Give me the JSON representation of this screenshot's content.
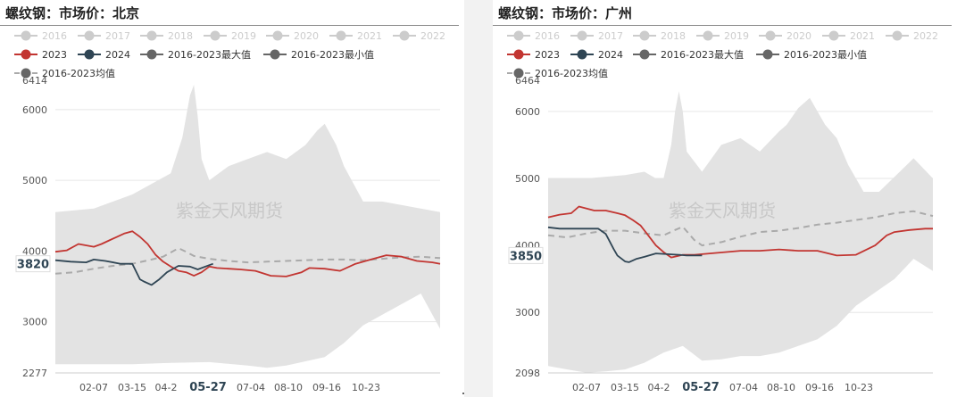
{
  "legend_row1": [
    "2016",
    "2017",
    "2018",
    "2019",
    "2020",
    "2021",
    "2022"
  ],
  "legend_row2": [
    {
      "name": "2023",
      "color": "#c23531"
    },
    {
      "name": "2024",
      "color": "#2f4554"
    },
    {
      "name": "2016-2023最大值",
      "color": "#666666"
    },
    {
      "name": "2016-2023最小值",
      "color": "#666666"
    }
  ],
  "legend_row3": [
    {
      "name": "2016-2023均值",
      "color": "#666666"
    }
  ],
  "colors": {
    "y2023": "#c23531",
    "y2024": "#2f4554",
    "avg": "#aaaaaa",
    "band": "#e3e3e3",
    "legend_off": "#cccccc"
  },
  "charts": [
    {
      "title": "螺纹钢：市场价：北京",
      "watermark": "紫金天风期货",
      "current_value_label": "3820",
      "chart_data": {
        "type": "line",
        "x_ticks": [
          "02-07",
          "03-15",
          "04-2",
          "05-27",
          "07-04",
          "08-10",
          "09-16",
          "10-23"
        ],
        "highlighted_tick": "05-27",
        "ylim": [
          2277,
          6414
        ],
        "y_ticks": [
          2277,
          3000,
          4000,
          5000,
          6000,
          6414
        ],
        "series": [
          {
            "name": "2023",
            "x": [
              0,
              3,
              6,
              10,
              12,
              14,
              18,
              20,
              22,
              24,
              26,
              28,
              30,
              32,
              34,
              36,
              38,
              40,
              42,
              45,
              48,
              52,
              56,
              60,
              64,
              66,
              70,
              74,
              78,
              82,
              86,
              90,
              94,
              98,
              100
            ],
            "y": [
              3990,
              4010,
              4100,
              4060,
              4100,
              4150,
              4250,
              4280,
              4200,
              4100,
              3950,
              3850,
              3780,
              3720,
              3700,
              3650,
              3700,
              3780,
              3760,
              3750,
              3740,
              3720,
              3650,
              3640,
              3700,
              3760,
              3750,
              3720,
              3820,
              3880,
              3940,
              3920,
              3860,
              3840,
              3820
            ]
          },
          {
            "name": "2024",
            "x": [
              0,
              4,
              8,
              10,
              13,
              17,
              20,
              22,
              23,
              25,
              27,
              29,
              31,
              32,
              35,
              37,
              40,
              41
            ],
            "y": [
              3870,
              3850,
              3840,
              3880,
              3860,
              3820,
              3820,
              3600,
              3570,
              3520,
              3600,
              3700,
              3760,
              3790,
              3780,
              3740,
              3800,
              3820
            ]
          },
          {
            "name": "2016-2023均值",
            "x": [
              0,
              5,
              10,
              15,
              20,
              25,
              28,
              30,
              32,
              34,
              36,
              40,
              45,
              50,
              55,
              60,
              65,
              70,
              75,
              80,
              85,
              90,
              95,
              100
            ],
            "y": [
              3680,
              3700,
              3750,
              3790,
              3820,
              3880,
              3920,
              3980,
              4040,
              3990,
              3930,
              3890,
              3860,
              3840,
              3850,
              3860,
              3870,
              3880,
              3880,
              3870,
              3890,
              3910,
              3920,
              3900
            ]
          },
          {
            "name": "2016-2023最大值",
            "x": [
              0,
              10,
              20,
              30,
              33,
              35,
              36,
              37,
              38,
              40,
              45,
              50,
              55,
              60,
              65,
              68,
              70,
              73,
              75,
              80,
              85,
              100
            ],
            "y": [
              4550,
              4600,
              4800,
              5100,
              5600,
              6200,
              6350,
              5900,
              5300,
              5000,
              5200,
              5300,
              5400,
              5300,
              5500,
              5700,
              5800,
              5500,
              5200,
              4700,
              4700,
              4550
            ]
          },
          {
            "name": "2016-2023最小值",
            "x": [
              0,
              10,
              20,
              30,
              40,
              50,
              55,
              60,
              70,
              75,
              80,
              85,
              90,
              95,
              100
            ],
            "y": [
              2400,
              2400,
              2400,
              2420,
              2430,
              2380,
              2350,
              2380,
              2500,
              2700,
              2950,
              3100,
              3250,
              3400,
              2900
            ]
          }
        ]
      }
    },
    {
      "title": "螺纹钢：市场价：广州",
      "watermark": "紫金天风期货",
      "current_value_label": "3850",
      "chart_data": {
        "type": "line",
        "x_ticks": [
          "02-07",
          "03-15",
          "04-2",
          "05-27",
          "07-04",
          "08-10",
          "09-16",
          "10-23"
        ],
        "highlighted_tick": "05-27",
        "ylim": [
          2098,
          6464
        ],
        "y_ticks": [
          2098,
          3000,
          4000,
          5000,
          6000,
          6464
        ],
        "series": [
          {
            "name": "2023",
            "x": [
              0,
              3,
              6,
              8,
              10,
              12,
              15,
              18,
              20,
              22,
              24,
              26,
              28,
              30,
              32,
              35,
              38,
              42,
              46,
              50,
              55,
              60,
              65,
              70,
              75,
              80,
              85,
              88,
              90,
              94,
              98,
              100
            ],
            "y": [
              4420,
              4460,
              4480,
              4580,
              4550,
              4520,
              4520,
              4480,
              4450,
              4380,
              4300,
              4150,
              4000,
              3900,
              3820,
              3860,
              3860,
              3880,
              3900,
              3920,
              3920,
              3940,
              3920,
              3920,
              3850,
              3860,
              4000,
              4150,
              4200,
              4230,
              4250,
              4250
            ]
          },
          {
            "name": "2024",
            "x": [
              0,
              3,
              6,
              10,
              13,
              15,
              17,
              18,
              20,
              21,
              23,
              25,
              28,
              31,
              34,
              36,
              40
            ],
            "y": [
              4270,
              4250,
              4250,
              4250,
              4250,
              4170,
              3950,
              3850,
              3760,
              3750,
              3800,
              3830,
              3880,
              3870,
              3860,
              3850,
              3850
            ]
          },
          {
            "name": "2016-2023均值",
            "x": [
              0,
              5,
              10,
              15,
              20,
              25,
              30,
              33,
              35,
              38,
              40,
              45,
              50,
              55,
              60,
              65,
              70,
              75,
              80,
              85,
              90,
              95,
              100
            ],
            "y": [
              4150,
              4120,
              4180,
              4220,
              4220,
              4180,
              4150,
              4230,
              4280,
              4080,
              4000,
              4050,
              4130,
              4200,
              4220,
              4260,
              4310,
              4340,
              4380,
              4420,
              4480,
              4510,
              4440
            ]
          },
          {
            "name": "2016-2023最大值",
            "x": [
              0,
              10,
              20,
              25,
              28,
              30,
              32,
              33,
              34,
              35,
              36,
              40,
              45,
              50,
              55,
              60,
              62,
              65,
              68,
              70,
              72,
              75,
              78,
              82,
              86,
              95,
              100
            ],
            "y": [
              5000,
              5000,
              5050,
              5100,
              5000,
              5000,
              5500,
              6000,
              6300,
              6000,
              5400,
              5100,
              5500,
              5600,
              5400,
              5700,
              5800,
              6050,
              6200,
              6000,
              5800,
              5600,
              5200,
              4800,
              4800,
              5300,
              5000
            ]
          },
          {
            "name": "2016-2023最小值",
            "x": [
              0,
              5,
              10,
              15,
              20,
              25,
              30,
              35,
              40,
              45,
              50,
              55,
              60,
              65,
              70,
              75,
              80,
              85,
              90,
              95,
              100
            ],
            "y": [
              2200,
              2150,
              2100,
              2120,
              2150,
              2250,
              2400,
              2500,
              2280,
              2300,
              2350,
              2350,
              2400,
              2500,
              2600,
              2800,
              3100,
              3300,
              3500,
              3800,
              3620
            ]
          }
        ]
      }
    }
  ]
}
